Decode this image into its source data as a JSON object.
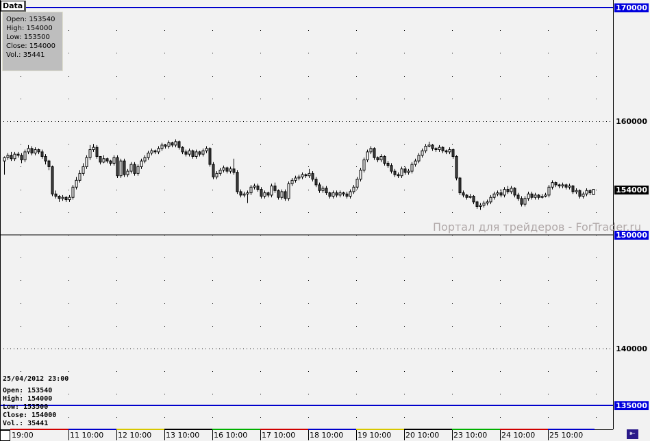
{
  "tab_label": "Data",
  "tooltip": {
    "open": "Open: 153540",
    "high": "High: 154000",
    "low": "Low: 153500",
    "close": "Close: 154000",
    "vol": "Vol.: 35441"
  },
  "info": {
    "datetime": "25/04/2012 23:00",
    "open": "Open: 153540",
    "high": "High: 154000",
    "low": "Low: 153500",
    "close": "Close: 154000",
    "vol": "Vol.: 35441"
  },
  "watermark": "Портал для трейдеров - ForTrader.ru",
  "colors": {
    "up": "#ffffff",
    "down": "#404040",
    "hline_blue": "#0000cc",
    "label_blue": "#0000dd",
    "label_black": "#000000"
  },
  "chart_data": {
    "type": "candlestick",
    "ylim": [
      133700,
      171000
    ],
    "y_ticks": [
      {
        "v": 170000,
        "label": "170000",
        "style": "blue"
      },
      {
        "v": 160000,
        "label": "160000",
        "style": "plain"
      },
      {
        "v": 154000,
        "label": "154000",
        "style": "black"
      },
      {
        "v": 150000,
        "label": "150000",
        "style": "blue"
      },
      {
        "v": 140000,
        "label": "140000",
        "style": "plain"
      },
      {
        "v": 135000,
        "label": "135000",
        "style": "blue"
      }
    ],
    "hlines": [
      {
        "v": 170000,
        "color": "#0000cc"
      },
      {
        "v": 150000,
        "color": "#000000"
      },
      {
        "v": 135000,
        "color": "#0000cc"
      }
    ],
    "dotted_grid": [
      160000,
      140000
    ],
    "x_labels": [
      "19:00",
      "11 10:00",
      "12 10:00",
      "13 10:00",
      "16 10:00",
      "17 10:00",
      "18 10:00",
      "19 10:00",
      "20 10:00",
      "23 10:00",
      "24 10:00",
      "25 10:00"
    ],
    "day_colors": [
      "#d00000",
      "#0000cc",
      "#d8c800",
      "#000000",
      "#00b000",
      "#d00000",
      "#0000cc",
      "#d8c800",
      "#000000",
      "#00b000",
      "#d00000",
      "#0000cc"
    ],
    "candles": [
      [
        156500,
        156900,
        155300,
        156800
      ],
      [
        156800,
        157200,
        156600,
        157000
      ],
      [
        157000,
        157300,
        156500,
        156700
      ],
      [
        156700,
        157300,
        156500,
        157100
      ],
      [
        157100,
        157300,
        156800,
        157000
      ],
      [
        157000,
        157200,
        156300,
        156600
      ],
      [
        156600,
        157500,
        156400,
        157300
      ],
      [
        157300,
        157900,
        157100,
        157600
      ],
      [
        157600,
        157800,
        157000,
        157200
      ],
      [
        157200,
        157700,
        157000,
        157500
      ],
      [
        157500,
        157600,
        157100,
        157300
      ],
      [
        157300,
        157500,
        156700,
        156900
      ],
      [
        156900,
        157100,
        156200,
        156500
      ],
      [
        156500,
        156600,
        155700,
        156000
      ],
      [
        156000,
        156100,
        153400,
        153600
      ],
      [
        153600,
        153900,
        153200,
        153400
      ],
      [
        153400,
        153500,
        152900,
        153200
      ],
      [
        153200,
        153500,
        153000,
        153300
      ],
      [
        153300,
        153400,
        152900,
        153100
      ],
      [
        153100,
        153500,
        152900,
        153300
      ],
      [
        153300,
        154400,
        153100,
        154200
      ],
      [
        154200,
        155100,
        154000,
        154800
      ],
      [
        154800,
        155700,
        154600,
        155400
      ],
      [
        155400,
        156300,
        155200,
        156000
      ],
      [
        156000,
        157000,
        155800,
        156800
      ],
      [
        156800,
        157900,
        156600,
        157500
      ],
      [
        157500,
        158000,
        157300,
        157700
      ],
      [
        157700,
        157900,
        156700,
        156900
      ],
      [
        156900,
        156900,
        156200,
        156400
      ],
      [
        156400,
        157000,
        156300,
        156700
      ],
      [
        156700,
        156800,
        156300,
        156500
      ],
      [
        156500,
        156600,
        156100,
        156300
      ],
      [
        156300,
        157000,
        156100,
        156800
      ],
      [
        156800,
        157000,
        155000,
        155200
      ],
      [
        155200,
        156700,
        155000,
        156500
      ],
      [
        156500,
        156700,
        155100,
        155300
      ],
      [
        155300,
        155800,
        155100,
        155600
      ],
      [
        155600,
        156400,
        155400,
        156200
      ],
      [
        156200,
        156400,
        155200,
        155400
      ],
      [
        155400,
        156200,
        155200,
        156000
      ],
      [
        156000,
        156700,
        155800,
        156500
      ],
      [
        156500,
        157000,
        156300,
        156800
      ],
      [
        156800,
        157400,
        156600,
        157200
      ],
      [
        157200,
        157600,
        157000,
        157400
      ],
      [
        157400,
        157500,
        157100,
        157300
      ],
      [
        157300,
        157800,
        157100,
        157600
      ],
      [
        157600,
        158100,
        157400,
        157900
      ],
      [
        157900,
        158000,
        157600,
        157800
      ],
      [
        157800,
        158300,
        157600,
        158100
      ],
      [
        158100,
        158200,
        157700,
        157900
      ],
      [
        157900,
        158400,
        157700,
        158200
      ],
      [
        158200,
        158300,
        157500,
        157700
      ],
      [
        157700,
        157800,
        157100,
        157300
      ],
      [
        157300,
        157500,
        156900,
        157100
      ],
      [
        157100,
        157600,
        156900,
        157400
      ],
      [
        157400,
        157500,
        156700,
        156900
      ],
      [
        156900,
        157500,
        156700,
        157300
      ],
      [
        157300,
        157400,
        156900,
        157100
      ],
      [
        157100,
        157600,
        156900,
        157400
      ],
      [
        157400,
        157800,
        157200,
        157600
      ],
      [
        157600,
        157700,
        156000,
        156200
      ],
      [
        156200,
        156400,
        154900,
        155100
      ],
      [
        155100,
        155600,
        154900,
        155400
      ],
      [
        155400,
        155900,
        155200,
        155700
      ],
      [
        155700,
        156100,
        155500,
        155900
      ],
      [
        155900,
        156000,
        155400,
        155600
      ],
      [
        155600,
        156000,
        155400,
        155800
      ],
      [
        155800,
        156700,
        155300,
        155500
      ],
      [
        155500,
        155700,
        153600,
        153800
      ],
      [
        153800,
        154000,
        153300,
        153500
      ],
      [
        153500,
        153800,
        153300,
        153600
      ],
      [
        153600,
        153900,
        152800,
        153700
      ],
      [
        153700,
        154400,
        153500,
        154200
      ],
      [
        154200,
        154500,
        154000,
        154300
      ],
      [
        154300,
        154500,
        153800,
        154000
      ],
      [
        154000,
        154200,
        153200,
        153400
      ],
      [
        153400,
        153900,
        153200,
        153700
      ],
      [
        153700,
        153800,
        153300,
        153500
      ],
      [
        153500,
        154500,
        153300,
        154300
      ],
      [
        154300,
        154600,
        153700,
        153900
      ],
      [
        153900,
        154000,
        153100,
        153300
      ],
      [
        153300,
        154000,
        153100,
        153800
      ],
      [
        153800,
        154000,
        153000,
        153200
      ],
      [
        153200,
        154700,
        153000,
        154500
      ],
      [
        154500,
        155000,
        154300,
        154800
      ],
      [
        154800,
        155200,
        154600,
        155000
      ],
      [
        155000,
        155300,
        154800,
        155100
      ],
      [
        155100,
        155500,
        154900,
        155300
      ],
      [
        155300,
        155400,
        155000,
        155200
      ],
      [
        155200,
        155800,
        155000,
        155400
      ],
      [
        155400,
        155600,
        154700,
        154900
      ],
      [
        154900,
        155100,
        154200,
        154400
      ],
      [
        154400,
        154600,
        153700,
        153900
      ],
      [
        153900,
        154300,
        153700,
        154100
      ],
      [
        154100,
        154300,
        153500,
        153700
      ],
      [
        153700,
        153800,
        153200,
        153400
      ],
      [
        153400,
        153900,
        153200,
        153700
      ],
      [
        153700,
        153900,
        153300,
        153500
      ],
      [
        153500,
        153900,
        153300,
        153700
      ],
      [
        153700,
        153800,
        153400,
        153600
      ],
      [
        153600,
        153800,
        153200,
        153400
      ],
      [
        153400,
        154000,
        153200,
        153800
      ],
      [
        153800,
        154400,
        153600,
        154200
      ],
      [
        154200,
        155100,
        154000,
        154900
      ],
      [
        154900,
        155900,
        154700,
        155700
      ],
      [
        155700,
        156800,
        155500,
        156600
      ],
      [
        156600,
        157500,
        156400,
        157300
      ],
      [
        157300,
        157800,
        157100,
        157600
      ],
      [
        157600,
        157700,
        156600,
        156800
      ],
      [
        156800,
        156900,
        156400,
        156600
      ],
      [
        156600,
        157100,
        156400,
        156900
      ],
      [
        156900,
        157000,
        156100,
        156300
      ],
      [
        156300,
        156500,
        155900,
        156100
      ],
      [
        156100,
        156300,
        155400,
        155600
      ],
      [
        155600,
        155800,
        155100,
        155300
      ],
      [
        155300,
        155500,
        155000,
        155200
      ],
      [
        155200,
        156000,
        155000,
        155800
      ],
      [
        155800,
        156000,
        155300,
        155500
      ],
      [
        155500,
        155800,
        155300,
        155600
      ],
      [
        155600,
        156400,
        155400,
        156200
      ],
      [
        156200,
        156700,
        156000,
        156500
      ],
      [
        156500,
        157200,
        156300,
        157000
      ],
      [
        157000,
        157600,
        156800,
        157400
      ],
      [
        157400,
        158000,
        157200,
        157800
      ],
      [
        157800,
        158200,
        157700,
        157900
      ],
      [
        157900,
        158000,
        157400,
        157600
      ],
      [
        157600,
        157700,
        157300,
        157500
      ],
      [
        157500,
        157900,
        157300,
        157700
      ],
      [
        157700,
        157800,
        157200,
        157400
      ],
      [
        157400,
        157500,
        157100,
        157300
      ],
      [
        157300,
        157700,
        157100,
        157500
      ],
      [
        157500,
        157600,
        156700,
        156900
      ],
      [
        156900,
        157000,
        154800,
        155000
      ],
      [
        155000,
        155100,
        153500,
        153700
      ],
      [
        153700,
        153900,
        153300,
        153500
      ],
      [
        153500,
        153600,
        153100,
        153300
      ],
      [
        153300,
        153600,
        153200,
        153400
      ],
      [
        153400,
        153500,
        152700,
        152900
      ],
      [
        152900,
        153000,
        152300,
        152500
      ],
      [
        152500,
        152800,
        152200,
        152600
      ],
      [
        152600,
        153000,
        152400,
        152800
      ],
      [
        152800,
        153100,
        152600,
        152900
      ],
      [
        152900,
        153500,
        152700,
        153300
      ],
      [
        153300,
        153800,
        153100,
        153600
      ],
      [
        153600,
        153900,
        153400,
        153700
      ],
      [
        153700,
        154000,
        153300,
        153500
      ],
      [
        153500,
        154200,
        153300,
        154000
      ],
      [
        154000,
        154300,
        153600,
        153800
      ],
      [
        153800,
        154300,
        153600,
        154100
      ],
      [
        154100,
        154200,
        153300,
        153500
      ],
      [
        153500,
        153700,
        153000,
        153200
      ],
      [
        153200,
        153400,
        152500,
        152700
      ],
      [
        152700,
        153400,
        152500,
        153200
      ],
      [
        153200,
        153800,
        153000,
        153600
      ],
      [
        153600,
        153800,
        153100,
        153300
      ],
      [
        153300,
        153700,
        153100,
        153500
      ],
      [
        153500,
        153600,
        153100,
        153300
      ],
      [
        153300,
        153600,
        153200,
        153400
      ],
      [
        153400,
        153700,
        153300,
        153500
      ],
      [
        153500,
        154400,
        153300,
        154200
      ],
      [
        154200,
        154800,
        154000,
        154600
      ],
      [
        154600,
        154700,
        154200,
        154400
      ],
      [
        154400,
        154500,
        154100,
        154300
      ],
      [
        154300,
        154600,
        154100,
        154400
      ],
      [
        154400,
        154500,
        154000,
        154200
      ],
      [
        154200,
        154500,
        154000,
        154300
      ],
      [
        154300,
        154400,
        153600,
        153800
      ],
      [
        153800,
        154100,
        153600,
        153900
      ],
      [
        153900,
        154000,
        153200,
        153400
      ],
      [
        153400,
        153800,
        153200,
        153600
      ],
      [
        153600,
        154100,
        153400,
        153900
      ],
      [
        153900,
        154000,
        153500,
        153700
      ],
      [
        153540,
        154000,
        153500,
        154000
      ]
    ]
  }
}
